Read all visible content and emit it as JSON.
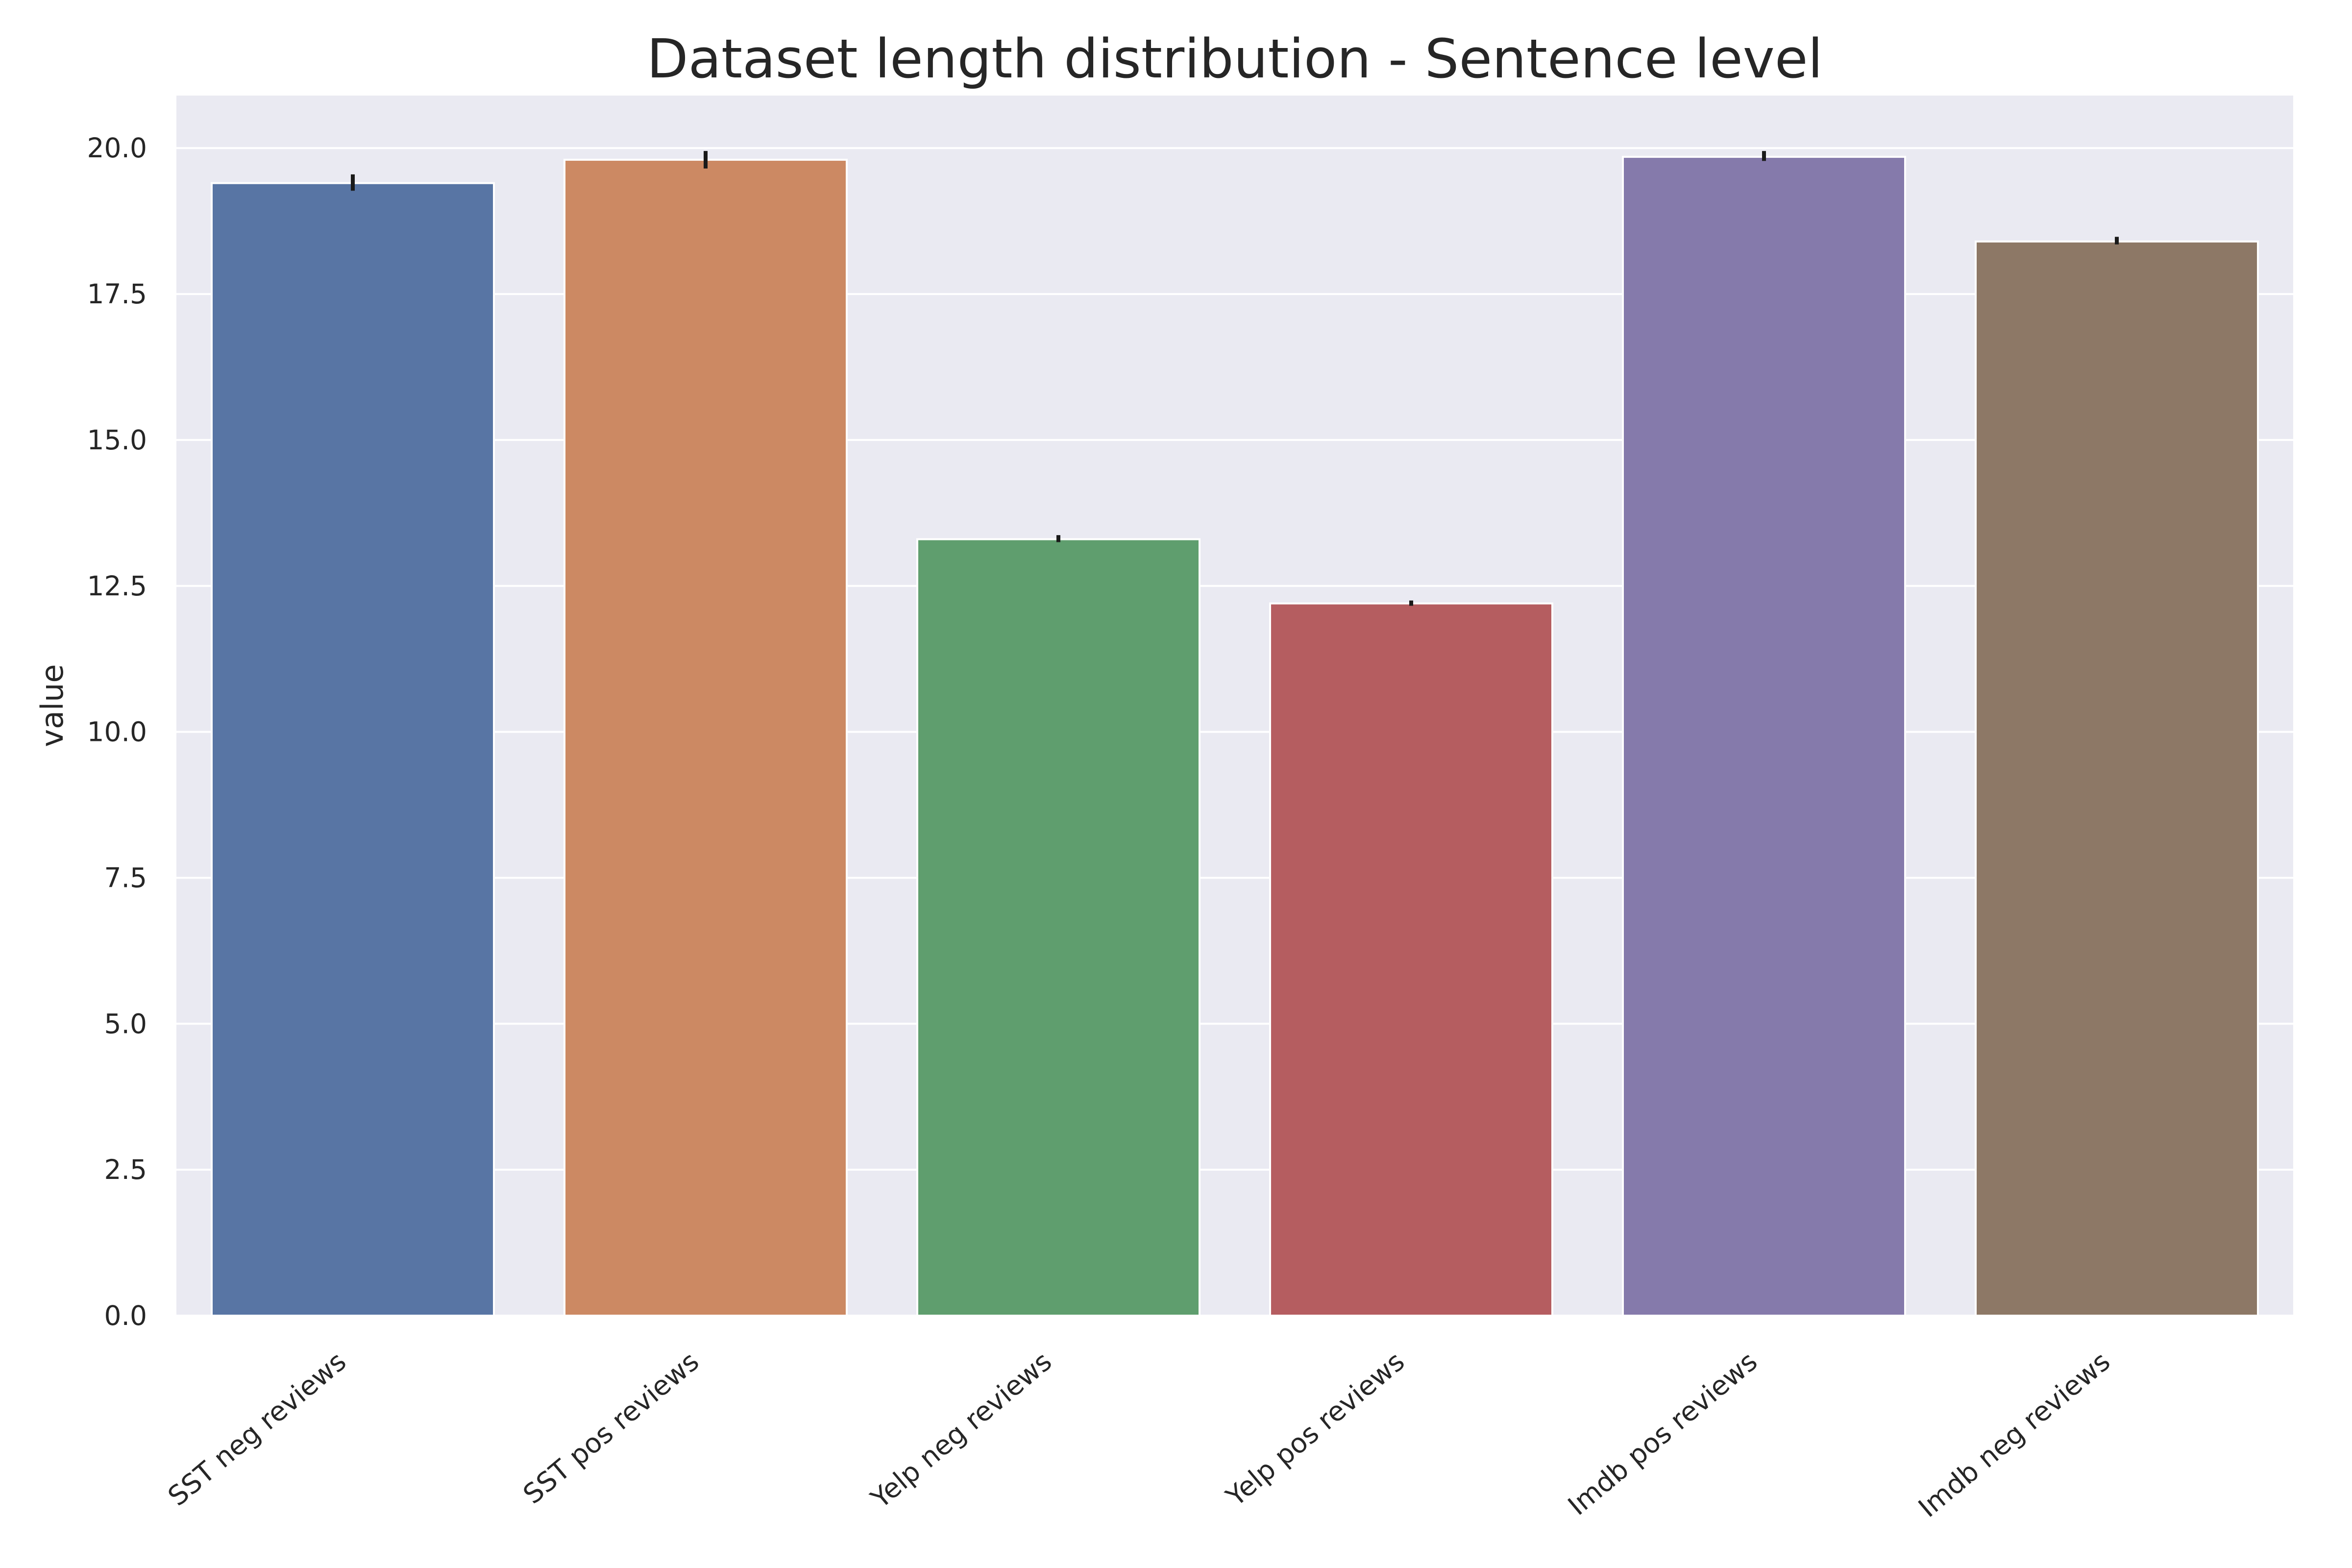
{
  "chart_data": {
    "type": "bar",
    "title": "Dataset length distribution - Sentence level",
    "xlabel": "",
    "ylabel": "value",
    "categories": [
      "SST neg reviews",
      "SST pos reviews",
      "Yelp neg reviews",
      "Yelp pos reviews",
      "Imdb pos reviews",
      "Imdb neg reviews"
    ],
    "values": [
      19.4,
      19.8,
      13.3,
      12.2,
      19.85,
      18.4
    ],
    "error_bars": [
      [
        19.27,
        19.55
      ],
      [
        19.65,
        19.95
      ],
      [
        13.25,
        13.37
      ],
      [
        12.16,
        12.25
      ],
      [
        19.78,
        19.95
      ],
      [
        18.35,
        18.48
      ]
    ],
    "colors": [
      "#5875a4",
      "#cc8963",
      "#5f9e6e",
      "#b55d60",
      "#857aab",
      "#8d7866"
    ],
    "error_bar_color": "#1a1a1a",
    "ylim": [
      0,
      20.9
    ],
    "yticks": [
      0,
      2.5,
      5,
      7.5,
      10,
      12.5,
      15,
      17.5,
      20
    ],
    "ytick_labels": [
      "0.0",
      "2.5",
      "5.0",
      "7.5",
      "10.0",
      "12.5",
      "15.0",
      "17.5",
      "20.0"
    ],
    "background": "#eaeaf2",
    "grid_color": "#ffffff",
    "grid": true,
    "legend": "none"
  }
}
